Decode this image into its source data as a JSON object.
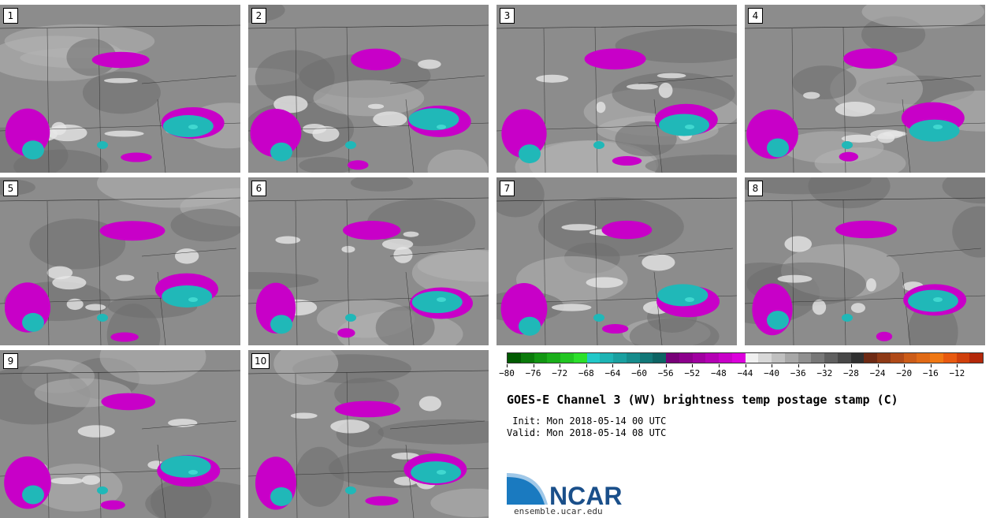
{
  "stamps": [
    {
      "label": "1"
    },
    {
      "label": "2"
    },
    {
      "label": "3"
    },
    {
      "label": "4"
    },
    {
      "label": "5"
    },
    {
      "label": "6"
    },
    {
      "label": "7"
    },
    {
      "label": "8"
    },
    {
      "label": "9"
    },
    {
      "label": "10"
    }
  ],
  "colorbar": {
    "colors": [
      "#005a00",
      "#0a7a0a",
      "#129612",
      "#1aae1a",
      "#22c622",
      "#2ce02c",
      "#22c8c8",
      "#1eb4b4",
      "#1aa0a0",
      "#168c8c",
      "#127878",
      "#0e6464",
      "#780078",
      "#8c008c",
      "#a000a0",
      "#b400b4",
      "#c800c8",
      "#dc00dc",
      "#f0f0f0",
      "#d8d8d8",
      "#c0c0c0",
      "#a8a8a8",
      "#909090",
      "#787878",
      "#606060",
      "#484848",
      "#303030",
      "#6e2a14",
      "#8e3a16",
      "#b04a18",
      "#cc5c18",
      "#e06a16",
      "#f07814",
      "#e85a10",
      "#d0400c",
      "#b4280a"
    ],
    "tick_labels": [
      "−80",
      "−76",
      "−72",
      "−68",
      "−64",
      "−60",
      "−56",
      "−52",
      "−48",
      "−44",
      "−40",
      "−36",
      "−32",
      "−28",
      "−24",
      "−20",
      "−16",
      "−12"
    ]
  },
  "title": "GOES-E Channel 3 (WV) brightness temp postage stamp (C)",
  "init_line": " Init: Mon 2018-05-14 00 UTC",
  "valid_line": "Valid: Mon 2018-05-14 08 UTC",
  "logo_text": "NCAR",
  "website": "ensemble.ucar.edu",
  "colors": {
    "magenta": "#c800c8",
    "cyan": "#20b8b8",
    "bright_cyan": "#40d8d0"
  }
}
